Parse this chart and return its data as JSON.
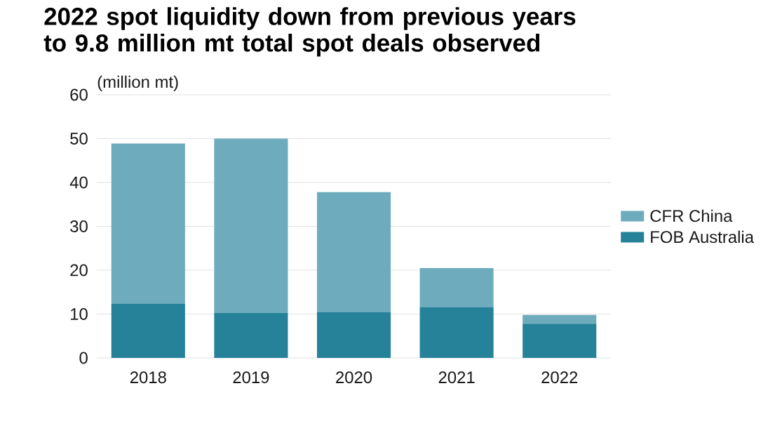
{
  "chart_data": {
    "type": "bar",
    "stacked": true,
    "title": "2022 spot liquidity down from previous years to 9.8 million mt total spot deals observed",
    "ylabel": "(million mt)",
    "categories": [
      "2018",
      "2019",
      "2020",
      "2021",
      "2022"
    ],
    "series": [
      {
        "name": "FOB Australia",
        "color": "#258299",
        "values": [
          12.4,
          10.3,
          10.5,
          11.6,
          7.8
        ]
      },
      {
        "name": "CFR China",
        "color": "#6eacbd",
        "values": [
          36.5,
          39.7,
          27.3,
          8.9,
          2.0
        ]
      }
    ],
    "ylim": [
      0,
      60
    ],
    "yticks": [
      0,
      10,
      20,
      30,
      40,
      50,
      60
    ],
    "grid": "y",
    "legend": "right"
  }
}
